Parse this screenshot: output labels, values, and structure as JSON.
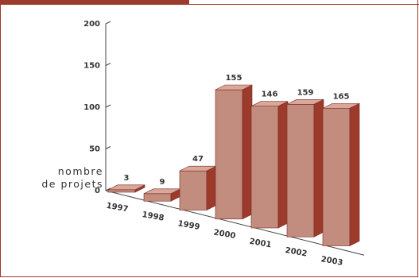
{
  "chart_data": {
    "type": "bar",
    "categories": [
      "1997",
      "1998",
      "1999",
      "2000",
      "2001",
      "2002",
      "2003"
    ],
    "values": [
      3,
      9,
      47,
      155,
      146,
      159,
      165
    ],
    "data_labels": [
      "3",
      "9",
      "47",
      "155",
      "146",
      "159",
      "165"
    ],
    "yticks": [
      "0",
      "50",
      "100",
      "150",
      "200"
    ],
    "ylim": [
      0,
      200
    ],
    "ylabel_line1": "nombre",
    "ylabel_line2": "de projets",
    "colors": {
      "front": "#c28c7e",
      "side": "#9c3a2c",
      "top": "#d9a89b",
      "accent": "#9c3a2c"
    }
  }
}
